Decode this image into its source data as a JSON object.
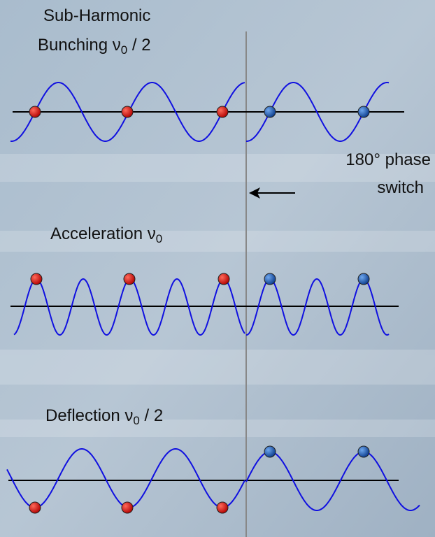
{
  "bunching": {
    "title": "Sub-Harmonic",
    "label": "Bunching ν",
    "subscript": "0",
    "suffix": " / 2"
  },
  "phase_switch": {
    "line1": "180° phase",
    "line2": "switch"
  },
  "acceleration": {
    "label": "Acceleration ν",
    "subscript": "0"
  },
  "deflection": {
    "label": "Deflection ν",
    "subscript": "0",
    "suffix": " / 2"
  }
}
